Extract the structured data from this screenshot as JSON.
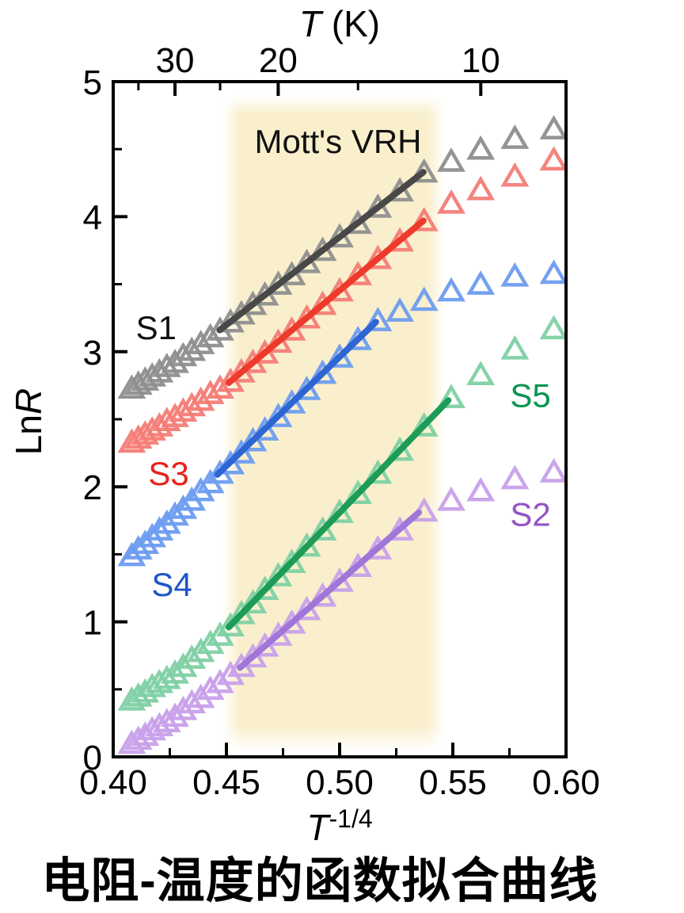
{
  "caption": {
    "text": "电阻-温度的函数拟合曲线"
  },
  "chart_data": {
    "type": "scatter",
    "annotation": {
      "text": "Mott's VRH",
      "pos": [
        0.4993,
        4.56
      ],
      "color": "#111111"
    },
    "top_axis": {
      "title_italic": "T",
      "title_rest": " (K)",
      "major_ticks_T": [
        30,
        20,
        10
      ],
      "major_tick_labels": [
        "30",
        "20",
        "10"
      ],
      "minor_ticks_T": [
        35,
        25,
        15
      ]
    },
    "x_axis": {
      "title_italic": "T",
      "title_superscript": "-1/4",
      "lim": [
        0.4,
        0.6
      ],
      "major_ticks": [
        0.4,
        0.45,
        0.5,
        0.55,
        0.6
      ],
      "major_tick_labels": [
        "0.40",
        "0.45",
        "0.50",
        "0.55",
        "0.60"
      ],
      "minor_ticks": [
        0.425,
        0.475,
        0.525,
        0.575
      ]
    },
    "y_axis": {
      "title_prefix": "Ln",
      "title_italic": "R",
      "lim": [
        0,
        5
      ],
      "major_ticks": [
        0,
        1,
        2,
        3,
        4,
        5
      ],
      "major_tick_labels": [
        "0",
        "1",
        "2",
        "3",
        "4",
        "5"
      ],
      "minor_ticks": [
        0.5,
        1.5,
        2.5,
        3.5,
        4.5
      ]
    },
    "vrh_region": {
      "x0": 0.448,
      "x1": 0.5465,
      "color": "#f9efcd"
    },
    "x": [
      0.4082,
      0.4111,
      0.4141,
      0.4172,
      0.4204,
      0.4237,
      0.4273,
      0.4309,
      0.4347,
      0.4387,
      0.4429,
      0.4472,
      0.4518,
      0.4566,
      0.4617,
      0.467,
      0.4729,
      0.4789,
      0.4855,
      0.4925,
      0.5,
      0.5081,
      0.5169,
      0.5266,
      0.5373,
      0.5493,
      0.5623,
      0.5774,
      0.5946
    ],
    "series": [
      {
        "name": "S1",
        "marker_color": "#8e8e8e",
        "line_color": "#484848",
        "label_color": "#111111",
        "label_pos": [
          0.419,
          3.18
        ],
        "fit": [
          [
            0.447,
            3.16
          ],
          [
            0.537,
            4.33
          ]
        ],
        "y": [
          2.73,
          2.76,
          2.79,
          2.82,
          2.85,
          2.89,
          2.92,
          2.97,
          3.01,
          3.06,
          3.11,
          3.16,
          3.22,
          3.28,
          3.35,
          3.42,
          3.5,
          3.57,
          3.66,
          3.75,
          3.85,
          3.95,
          4.07,
          4.19,
          4.33,
          4.41,
          4.5,
          4.58,
          4.65
        ]
      },
      {
        "name": "S3",
        "marker_color": "#f47c76",
        "line_color": "#ee3a2c",
        "label_color": "#e8211c",
        "label_pos": [
          0.4245,
          2.1
        ],
        "fit": [
          [
            0.451,
            2.77
          ],
          [
            0.537,
            3.97
          ]
        ],
        "y": [
          2.33,
          2.36,
          2.39,
          2.42,
          2.45,
          2.49,
          2.52,
          2.56,
          2.6,
          2.64,
          2.69,
          2.73,
          2.78,
          2.85,
          2.92,
          2.99,
          3.07,
          3.16,
          3.25,
          3.35,
          3.45,
          3.57,
          3.69,
          3.82,
          3.97,
          4.1,
          4.2,
          4.3,
          4.42
        ]
      },
      {
        "name": "S4",
        "marker_color": "#6d9cf0",
        "line_color": "#2d65d2",
        "label_color": "#1e56c8",
        "label_pos": [
          0.4259,
          1.28
        ],
        "fit": [
          [
            0.446,
            2.09
          ],
          [
            0.516,
            3.22
          ]
        ],
        "y": [
          1.49,
          1.54,
          1.58,
          1.63,
          1.68,
          1.73,
          1.79,
          1.84,
          1.9,
          1.97,
          2.03,
          2.1,
          2.17,
          2.25,
          2.34,
          2.42,
          2.52,
          2.62,
          2.72,
          2.84,
          2.96,
          3.09,
          3.23,
          3.3,
          3.38,
          3.45,
          3.5,
          3.56,
          3.58
        ]
      },
      {
        "name": "S5",
        "marker_color": "#7fd0a4",
        "line_color": "#1d9b57",
        "label_color": "#089552",
        "label_pos": [
          0.5843,
          2.68
        ],
        "fit": [
          [
            0.451,
            0.96
          ],
          [
            0.548,
            2.64
          ]
        ],
        "y": [
          0.42,
          0.45,
          0.48,
          0.52,
          0.55,
          0.58,
          0.62,
          0.67,
          0.73,
          0.78,
          0.84,
          0.9,
          0.97,
          1.06,
          1.14,
          1.24,
          1.34,
          1.44,
          1.56,
          1.68,
          1.81,
          1.95,
          2.1,
          2.27,
          2.45,
          2.66,
          2.83,
          3.02,
          3.17
        ]
      },
      {
        "name": "S2",
        "marker_color": "#c8a0ea",
        "line_color": "#a176d9",
        "label_color": "#9553c5",
        "label_pos": [
          0.5843,
          1.8
        ],
        "fit": [
          [
            0.456,
            0.66
          ],
          [
            0.535,
            1.81
          ]
        ],
        "y": [
          0.1,
          0.13,
          0.16,
          0.2,
          0.23,
          0.26,
          0.3,
          0.35,
          0.4,
          0.44,
          0.5,
          0.55,
          0.61,
          0.67,
          0.74,
          0.82,
          0.9,
          0.99,
          1.09,
          1.19,
          1.3,
          1.41,
          1.54,
          1.68,
          1.82,
          1.9,
          1.97,
          2.06,
          2.11
        ]
      }
    ],
    "axis_color": "#000000"
  }
}
